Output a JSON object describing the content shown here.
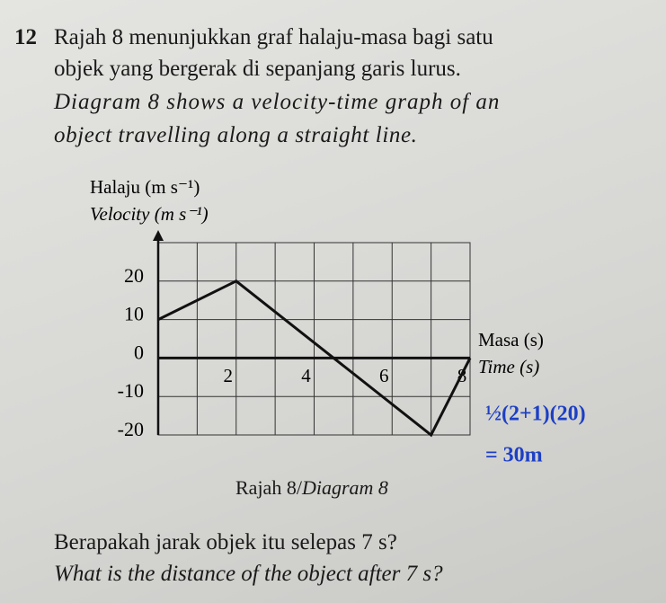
{
  "question": {
    "number": "12",
    "malay": [
      "Rajah 8 menunjukkan graf halaju-masa bagi satu",
      "objek yang bergerak di sepanjang garis lurus."
    ],
    "english": [
      "Diagram 8 shows a velocity-time graph of an",
      "object travelling along a straight line."
    ],
    "caption_malay": "Rajah 8/",
    "caption_english": "Diagram 8",
    "ask_malay": "Berapakah jarak objek itu selepas 7 s?",
    "ask_english": "What is the distance of the object after 7 s?",
    "handwriting": [
      "½(2+1)(20)",
      "= 30m"
    ]
  },
  "chart_data": {
    "type": "line",
    "y_label_malay": "Halaju (m s⁻¹)",
    "y_label_english": "Velocity (m s⁻¹)",
    "x_label_malay": "Masa (s)",
    "x_label_english": "Time (s)",
    "x": [
      0,
      2,
      7,
      8
    ],
    "values": [
      10,
      20,
      -20,
      0
    ],
    "color": "#111111",
    "xlim": [
      0,
      8
    ],
    "xticks": [
      2,
      4,
      6,
      8
    ],
    "ylim": [
      -20,
      30
    ],
    "yticks": [
      -20,
      -10,
      0,
      10,
      20
    ],
    "grid": true
  }
}
